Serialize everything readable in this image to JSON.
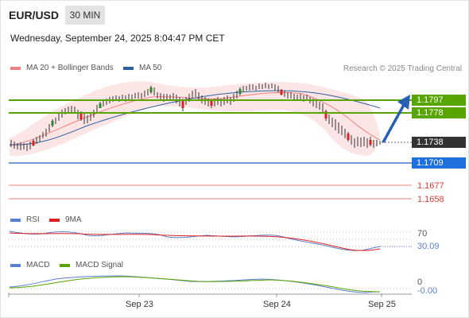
{
  "header": {
    "symbol": "EUR/USD",
    "timeframe": "30 MIN",
    "datetime": "Wednesday, September 24, 2025 8:04:47 PM CET"
  },
  "legend": {
    "ma20_label": "MA 20 + Bollinger Bands",
    "ma50_label": "MA 50",
    "research": "Research © 2025 Trading Central",
    "colors": {
      "ma20": "#f08080",
      "ma50": "#2f5f9e"
    }
  },
  "levels": {
    "resistance_2": "1.1797",
    "resistance_1": "1.1778",
    "last_price": "1.1738",
    "pivot": "1.1709",
    "support_1": "1.1677",
    "support_2": "1.1658",
    "colors": {
      "green": "#58a500",
      "dark": "#333333",
      "blue": "#1f6fdc",
      "red": "#e53935"
    }
  },
  "rsi_panel": {
    "rsi_label": "RSI",
    "ma_label": "9MA",
    "level_70": "70",
    "level_30": "30",
    "value": "30.09",
    "colors": {
      "rsi": "#5b7fd1",
      "ma": "#e02020"
    }
  },
  "macd_panel": {
    "macd_label": "MACD",
    "signal_label": "MACD Signal",
    "zero": "0",
    "value": "-0.00",
    "colors": {
      "macd": "#5b7fd1",
      "signal": "#58a500"
    }
  },
  "x_axis": {
    "labels": [
      "Sep 23",
      "Sep 24",
      "Sep 25"
    ]
  }
}
